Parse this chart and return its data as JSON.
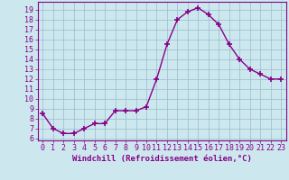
{
  "x": [
    0,
    1,
    2,
    3,
    4,
    5,
    6,
    7,
    8,
    9,
    10,
    11,
    12,
    13,
    14,
    15,
    16,
    17,
    18,
    19,
    20,
    21,
    22,
    23
  ],
  "y": [
    8.5,
    7.0,
    6.5,
    6.5,
    7.0,
    7.5,
    7.5,
    8.8,
    8.8,
    8.8,
    9.2,
    12.0,
    15.5,
    18.0,
    18.8,
    19.2,
    18.5,
    17.5,
    15.5,
    14.0,
    13.0,
    12.5,
    12.0,
    12.0
  ],
  "line_color": "#880088",
  "marker": "+",
  "markersize": 4,
  "markeredgewidth": 1.2,
  "linewidth": 1.0,
  "background_color": "#cce8ee",
  "grid_color": "#99bbcc",
  "xlabel": "Windchill (Refroidissement éolien,°C)",
  "xlabel_fontsize": 6.5,
  "ylabel_ticks": [
    6,
    7,
    8,
    9,
    10,
    11,
    12,
    13,
    14,
    15,
    16,
    17,
    18,
    19
  ],
  "xlim": [
    -0.5,
    23.5
  ],
  "ylim": [
    5.8,
    19.8
  ],
  "tick_fontsize": 6.0,
  "tick_color": "#880088",
  "spine_color": "#880088"
}
